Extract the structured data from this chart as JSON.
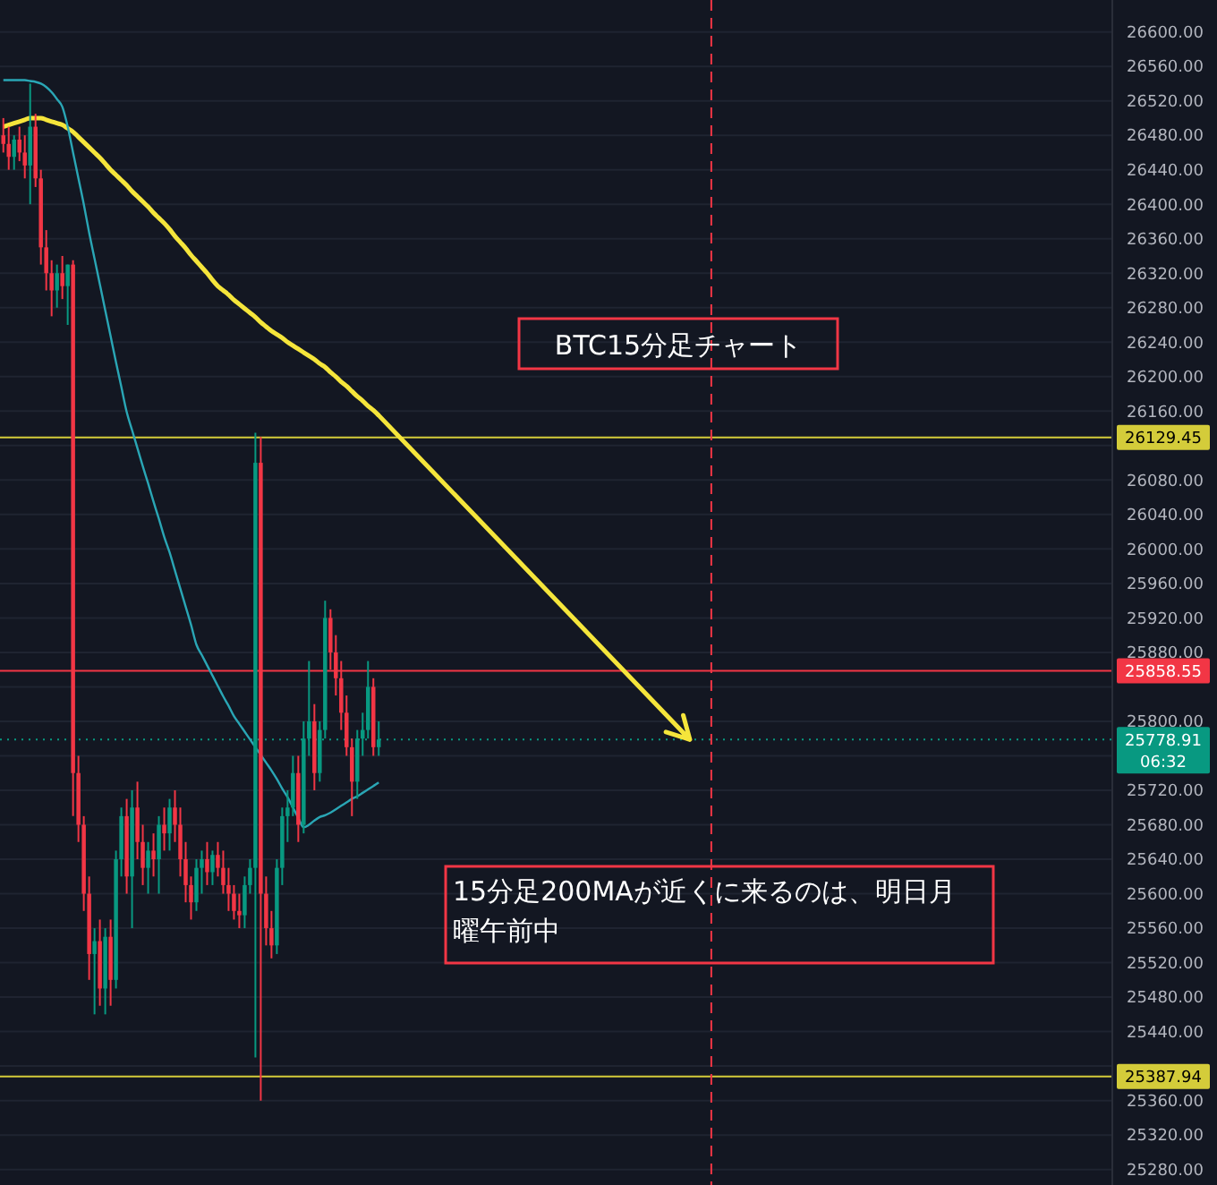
{
  "chart_data": {
    "type": "candlestick",
    "categories": [
      null,
      null,
      null,
      null,
      null,
      null,
      null,
      null,
      null,
      null,
      null,
      null,
      null,
      null,
      null,
      null,
      null,
      null,
      null,
      null,
      null,
      null,
      null,
      null,
      null,
      null,
      null,
      null,
      null,
      null,
      null,
      null,
      null,
      null,
      null,
      null,
      null,
      null,
      null,
      null,
      null,
      null,
      null,
      null,
      null,
      null,
      null,
      null,
      null,
      null,
      null,
      null,
      null,
      null,
      null,
      null,
      null,
      null,
      null,
      null,
      null,
      null,
      null,
      null,
      null,
      null,
      null,
      null,
      null,
      null,
      null,
      null,
      null,
      null,
      null,
      null,
      null,
      null,
      null,
      null,
      null,
      null,
      null,
      null,
      null,
      null,
      null,
      null,
      null,
      null,
      null,
      null,
      null,
      null,
      null,
      null,
      null,
      null,
      null,
      null,
      null,
      null,
      null,
      null,
      null,
      null,
      null,
      null,
      null,
      null,
      null,
      null,
      null,
      null,
      null,
      null,
      null,
      null,
      null,
      null,
      null,
      null,
      null,
      null,
      null,
      null,
      null,
      null,
      null,
      null,
      null,
      null,
      null,
      null,
      null,
      null,
      null,
      null,
      null,
      null,
      null,
      null,
      null,
      null,
      null,
      null,
      null,
      null,
      null,
      null,
      null,
      null,
      null,
      null,
      null,
      null,
      null,
      null,
      null,
      null,
      null,
      null,
      null,
      null,
      null,
      null,
      null,
      null,
      null,
      null,
      null,
      null,
      null,
      null,
      null,
      null,
      null,
      null,
      null,
      null,
      null,
      null,
      null,
      null,
      null,
      null,
      null,
      null,
      null,
      null,
      null,
      null,
      null,
      null,
      null,
      null,
      null,
      null,
      null,
      null,
      null,
      null,
      null,
      null,
      null,
      null,
      null
    ],
    "ohlc": [
      [
        26480,
        26500,
        26460,
        26470
      ],
      [
        26470,
        26490,
        26440,
        26455
      ],
      [
        26455,
        26480,
        26440,
        26475
      ],
      [
        26475,
        26490,
        26450,
        26460
      ],
      [
        26460,
        26480,
        26430,
        26445
      ],
      [
        26445,
        26540,
        26400,
        26490
      ],
      [
        26490,
        26505,
        26420,
        26430
      ],
      [
        26430,
        26440,
        26330,
        26350
      ],
      [
        26350,
        26370,
        26300,
        26320
      ],
      [
        26320,
        26335,
        26270,
        26300
      ],
      [
        26300,
        26330,
        26280,
        26320
      ],
      [
        26320,
        26340,
        26290,
        26305
      ],
      [
        26305,
        26330,
        26260,
        26330
      ],
      [
        26330,
        26335,
        25690,
        25740
      ],
      [
        25740,
        25760,
        25660,
        25680
      ],
      [
        25680,
        25690,
        25580,
        25600
      ],
      [
        25600,
        25620,
        25500,
        25530
      ],
      [
        25530,
        25560,
        25460,
        25545
      ],
      [
        25545,
        25570,
        25470,
        25490
      ],
      [
        25490,
        25560,
        25460,
        25550
      ],
      [
        25550,
        25570,
        25470,
        25500
      ],
      [
        25500,
        25650,
        25490,
        25640
      ],
      [
        25640,
        25700,
        25620,
        25690
      ],
      [
        25690,
        25710,
        25600,
        25620
      ],
      [
        25620,
        25720,
        25560,
        25700
      ],
      [
        25700,
        25730,
        25640,
        25660
      ],
      [
        25660,
        25680,
        25610,
        25630
      ],
      [
        25630,
        25660,
        25600,
        25650
      ],
      [
        25650,
        25670,
        25620,
        25640
      ],
      [
        25640,
        25690,
        25600,
        25680
      ],
      [
        25680,
        25700,
        25650,
        25670
      ],
      [
        25670,
        25710,
        25650,
        25700
      ],
      [
        25700,
        25720,
        25660,
        25680
      ],
      [
        25680,
        25700,
        25620,
        25640
      ],
      [
        25640,
        25660,
        25590,
        25610
      ],
      [
        25610,
        25620,
        25570,
        25590
      ],
      [
        25590,
        25640,
        25580,
        25630
      ],
      [
        25630,
        25650,
        25600,
        25640
      ],
      [
        25640,
        25660,
        25610,
        25625
      ],
      [
        25625,
        25650,
        25610,
        25645
      ],
      [
        25645,
        25660,
        25620,
        25630
      ],
      [
        25630,
        25650,
        25600,
        25610
      ],
      [
        25610,
        25630,
        25580,
        25600
      ],
      [
        25600,
        25610,
        25570,
        25580
      ],
      [
        25580,
        25600,
        25560,
        25575
      ],
      [
        25575,
        25620,
        25560,
        25610
      ],
      [
        25610,
        25640,
        25600,
        25630
      ],
      [
        25630,
        26135,
        25410,
        26100
      ],
      [
        26100,
        26130,
        25360,
        25600
      ],
      [
        25600,
        25620,
        25540,
        25560
      ],
      [
        25560,
        25580,
        25525,
        25540
      ],
      [
        25540,
        25640,
        25530,
        25630
      ],
      [
        25630,
        25700,
        25610,
        25690
      ],
      [
        25690,
        25720,
        25660,
        25700
      ],
      [
        25700,
        25760,
        25690,
        25740
      ],
      [
        25740,
        25760,
        25660,
        25680
      ],
      [
        25680,
        25800,
        25670,
        25780
      ],
      [
        25780,
        25870,
        25760,
        25800
      ],
      [
        25800,
        25820,
        25720,
        25740
      ],
      [
        25740,
        25800,
        25730,
        25790
      ],
      [
        25790,
        25940,
        25780,
        25920
      ],
      [
        25920,
        25930,
        25860,
        25880
      ],
      [
        25880,
        25900,
        25830,
        25850
      ],
      [
        25850,
        25870,
        25790,
        25810
      ],
      [
        25810,
        25830,
        25760,
        25770
      ],
      [
        25770,
        25780,
        25690,
        25730
      ],
      [
        25730,
        25790,
        25710,
        25780
      ],
      [
        25780,
        25810,
        25760,
        25790
      ],
      [
        25790,
        25870,
        25780,
        25840
      ],
      [
        25840,
        25850,
        25760,
        25770
      ],
      [
        25770,
        25800,
        25760,
        25778.91
      ],
      null,
      null,
      null,
      null,
      null,
      null,
      null,
      null,
      null,
      null,
      null,
      null,
      null,
      null,
      null,
      null,
      null,
      null,
      null,
      null,
      null,
      null,
      null,
      null,
      null,
      null,
      null,
      null,
      null,
      null,
      null,
      null,
      null,
      null,
      null,
      null,
      null,
      null,
      null,
      null,
      null,
      null,
      null,
      null,
      null,
      null,
      null,
      null,
      null,
      null,
      null,
      null,
      null,
      null,
      null,
      null,
      null,
      null,
      null,
      null,
      null,
      null,
      null,
      null,
      null,
      null,
      null,
      null,
      null,
      null,
      null,
      null,
      null,
      null,
      null,
      null,
      null,
      null,
      null,
      null,
      null,
      null,
      null,
      null,
      null,
      null,
      null,
      null,
      null,
      null,
      null,
      null,
      null,
      null,
      null,
      null,
      null,
      null,
      null,
      null,
      null,
      null,
      null,
      null,
      null,
      null,
      null,
      null,
      null,
      null,
      null,
      null,
      null,
      null,
      null,
      null,
      null,
      null,
      null,
      null,
      null,
      null,
      null,
      null,
      null,
      null,
      null,
      null,
      null,
      null,
      null,
      null,
      null,
      null,
      null,
      null
    ],
    "series": [
      {
        "type": "line",
        "color": "#f5e53b",
        "values": [
          26490,
          26492,
          26494,
          26496,
          26498,
          26500,
          26500,
          26500,
          26498,
          26496,
          26494,
          26492,
          26488,
          26484,
          26478,
          26472,
          26466,
          26460,
          26454,
          26447,
          26440,
          26434,
          26428,
          26422,
          26415,
          26409,
          26403,
          26397,
          26390,
          26384,
          26378,
          26371,
          26363,
          26356,
          26349,
          26341,
          26334,
          26327,
          26320,
          26312,
          26305,
          26300,
          26295,
          26289,
          26284,
          26279,
          26274,
          26269,
          26263,
          26258,
          26253,
          26249,
          26245,
          26240,
          26236,
          26232,
          26228,
          26224,
          26220,
          26215,
          26211,
          26205,
          26200,
          26194,
          26189,
          26183,
          26177,
          26172,
          26166,
          26161,
          26155,
          null,
          null,
          null,
          null,
          null,
          null,
          null,
          null,
          null,
          null,
          null,
          null,
          null,
          null,
          null,
          null,
          null,
          null,
          null,
          null,
          null,
          null,
          null,
          null,
          null,
          null,
          null,
          null,
          null,
          null,
          null,
          null,
          null,
          null,
          null,
          null,
          null,
          null,
          null,
          null,
          null,
          null,
          null,
          null,
          null,
          null,
          null,
          null,
          null,
          null,
          null,
          null,
          null,
          null,
          null,
          null,
          null,
          null,
          null,
          null,
          null,
          null,
          null,
          null,
          null,
          null,
          null,
          null,
          null,
          null,
          null,
          null,
          null,
          null,
          null,
          null,
          null,
          null,
          null,
          null,
          null,
          null,
          null,
          null,
          null,
          null,
          null,
          null,
          null,
          null,
          null,
          null,
          null,
          null,
          null,
          null,
          null,
          null,
          null,
          null,
          null,
          null,
          null,
          null,
          null,
          null,
          null,
          null,
          null,
          null,
          null,
          null,
          null,
          null,
          null,
          null,
          null,
          null,
          null,
          null,
          null,
          null,
          null,
          null,
          null,
          null,
          null,
          null,
          null,
          null,
          null,
          null,
          null,
          null,
          null,
          null
        ]
      },
      {
        "type": "line",
        "color": "#2aa6b5",
        "values": [
          26544,
          26544,
          26544,
          26544,
          26544,
          26543,
          26542,
          26540,
          26536,
          26530,
          26522,
          26513,
          26490,
          26460,
          26430,
          26400,
          26367,
          26337,
          26307,
          26277,
          26247,
          26217,
          26188,
          26159,
          26138,
          26117,
          26096,
          26076,
          26055,
          26035,
          26014,
          25996,
          25975,
          25954,
          25933,
          25912,
          25889,
          25877,
          25865,
          25853,
          25841,
          25829,
          25818,
          25806,
          25797,
          25788,
          25779,
          25770,
          25761,
          25752,
          25743,
          25733,
          25722,
          25712,
          25700,
          25688,
          25677,
          25680,
          25685,
          25689,
          25691,
          25694,
          25698,
          25702,
          25706,
          25710,
          25713,
          25717,
          25721,
          25725,
          25729,
          null,
          null,
          null,
          null,
          null,
          null,
          null,
          null,
          null,
          null,
          null,
          null,
          null,
          null,
          null,
          null,
          null,
          null,
          null,
          null,
          null,
          null,
          null,
          null,
          null,
          null,
          null,
          null,
          null,
          null,
          null,
          null,
          null,
          null,
          null,
          null,
          null,
          null,
          null,
          null,
          null,
          null,
          null,
          null,
          null,
          null,
          null,
          null,
          null,
          null,
          null,
          null,
          null,
          null,
          null,
          null,
          null,
          null,
          null,
          null,
          null,
          null,
          null,
          null,
          null,
          null,
          null,
          null,
          null,
          null,
          null,
          null,
          null,
          null,
          null,
          null,
          null,
          null,
          null,
          null,
          null,
          null,
          null,
          null,
          null,
          null,
          null,
          null,
          null,
          null,
          null,
          null,
          null,
          null,
          null,
          null,
          null,
          null,
          null,
          null,
          null,
          null,
          null,
          null,
          null,
          null,
          null,
          null,
          null,
          null,
          null,
          null,
          null,
          null,
          null,
          null,
          null,
          null,
          null,
          null,
          null,
          null,
          null,
          null,
          null,
          null,
          null,
          null,
          null,
          null,
          null,
          null,
          null,
          null,
          null,
          null
        ]
      }
    ],
    "ylim": [
      25262,
      26637
    ],
    "yticks": [
      {
        "value": 25280,
        "label": "25280.00"
      },
      {
        "value": 25320,
        "label": "25320.00"
      },
      {
        "value": 25360,
        "label": "25360.00"
      },
      {
        "value": 25400,
        "label": null
      },
      {
        "value": 25440,
        "label": "25440.00"
      },
      {
        "value": 25480,
        "label": "25480.00"
      },
      {
        "value": 25520,
        "label": "25520.00"
      },
      {
        "value": 25560,
        "label": "25560.00"
      },
      {
        "value": 25600,
        "label": "25600.00"
      },
      {
        "value": 25640,
        "label": "25640.00"
      },
      {
        "value": 25680,
        "label": "25680.00"
      },
      {
        "value": 25720,
        "label": "25720.00"
      },
      {
        "value": 25760,
        "label": null
      },
      {
        "value": 25800,
        "label": "25800.00"
      },
      {
        "value": 25840,
        "label": null
      },
      {
        "value": 25880,
        "label": "25880.00"
      },
      {
        "value": 25920,
        "label": "25920.00"
      },
      {
        "value": 25960,
        "label": "25960.00"
      },
      {
        "value": 26000,
        "label": "26000.00"
      },
      {
        "value": 26040,
        "label": "26040.00"
      },
      {
        "value": 26080,
        "label": "26080.00"
      },
      {
        "value": 26120,
        "label": null
      },
      {
        "value": 26160,
        "label": "26160.00"
      },
      {
        "value": 26200,
        "label": "26200.00"
      },
      {
        "value": 26240,
        "label": "26240.00"
      },
      {
        "value": 26280,
        "label": "26280.00"
      },
      {
        "value": 26320,
        "label": "26320.00"
      },
      {
        "value": 26360,
        "label": "26360.00"
      },
      {
        "value": 26400,
        "label": "26400.00"
      },
      {
        "value": 26440,
        "label": "26440.00"
      },
      {
        "value": 26480,
        "label": "26480.00"
      },
      {
        "value": 26520,
        "label": "26520.00"
      },
      {
        "value": 26560,
        "label": "26560.00"
      },
      {
        "value": 26600,
        "label": "26600.00"
      }
    ],
    "grid": "y",
    "tick_labels": "y",
    "ref_lines": [
      {
        "axis": "y",
        "value": 26129.45,
        "label": "26129.45",
        "color": "#d4cc3a"
      },
      {
        "axis": "y",
        "value": 25858.55,
        "label": "25858.55",
        "color": "#f23645"
      },
      {
        "axis": "y",
        "value": 25778.91,
        "label": "25778.91",
        "color": "#089981",
        "line_style": "dotted"
      },
      {
        "axis": "y",
        "value": 25387.94,
        "label": "25387.94",
        "color": "#d4cc3a"
      }
    ],
    "annotations": [
      "BTC15分足チャート",
      "15分足200MAが近くに来るのは、明日月曜午前中",
      "06:32"
    ]
  }
}
